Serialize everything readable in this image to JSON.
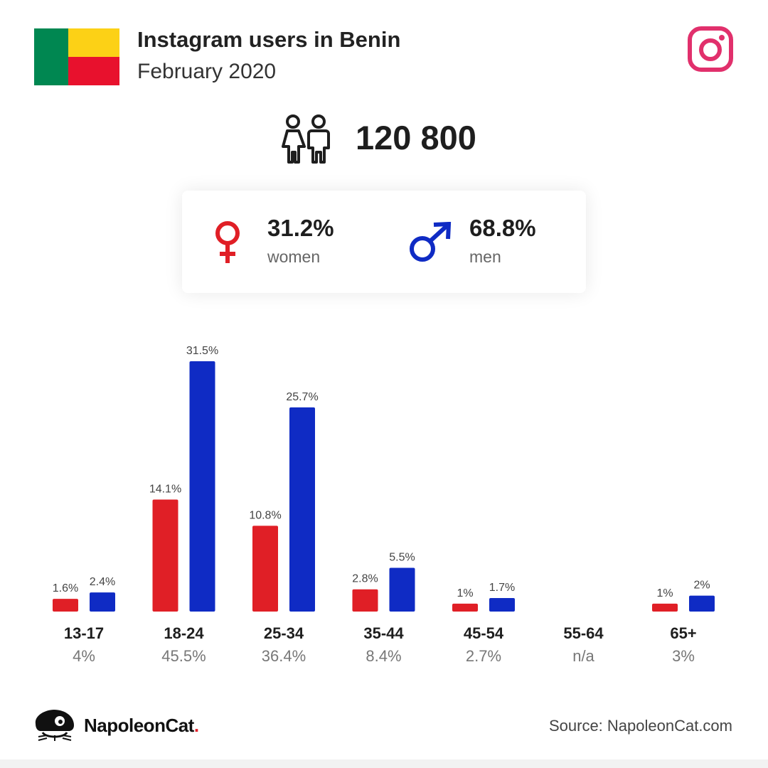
{
  "header": {
    "title": "Instagram users in Benin",
    "subtitle": "February 2020"
  },
  "flag_colors": {
    "green": "#008751",
    "yellow": "#fcd116",
    "red": "#e8112d"
  },
  "icons": {
    "flag": "benin-flag-icon",
    "instagram": "instagram-icon",
    "people": "people-icon",
    "female": "female-symbol-icon",
    "male": "male-symbol-icon",
    "logo": "napoleoncat-logo-icon"
  },
  "total_users": "120 800",
  "gender": {
    "women": {
      "pct": "31.2%",
      "label": "women"
    },
    "men": {
      "pct": "68.8%",
      "label": "men"
    }
  },
  "colors": {
    "women": "#e01f26",
    "men": "#0f2bc4",
    "instagram": "#e1306c"
  },
  "chart_data": {
    "type": "bar",
    "categories": [
      "13-17",
      "18-24",
      "25-34",
      "35-44",
      "45-54",
      "55-64",
      "65+"
    ],
    "category_totals": [
      "4%",
      "45.5%",
      "36.4%",
      "8.4%",
      "2.7%",
      "n/a",
      "3%"
    ],
    "series": [
      {
        "values": [
          1.6,
          14.1,
          10.8,
          2.8,
          1,
          null,
          1
        ],
        "labels": [
          "1.6%",
          "14.1%",
          "10.8%",
          "2.8%",
          "1%",
          "",
          "1%"
        ]
      },
      {
        "values": [
          2.4,
          31.5,
          25.7,
          5.5,
          1.7,
          null,
          2
        ],
        "labels": [
          "2.4%",
          "31.5%",
          "25.7%",
          "5.5%",
          "1.7%",
          "",
          "2%"
        ]
      }
    ],
    "ylim": [
      0,
      31.5
    ],
    "grid": false
  },
  "footer": {
    "brand": "NapoleonCat",
    "brand_dot": ".",
    "source": "Source: NapoleonCat.com"
  }
}
